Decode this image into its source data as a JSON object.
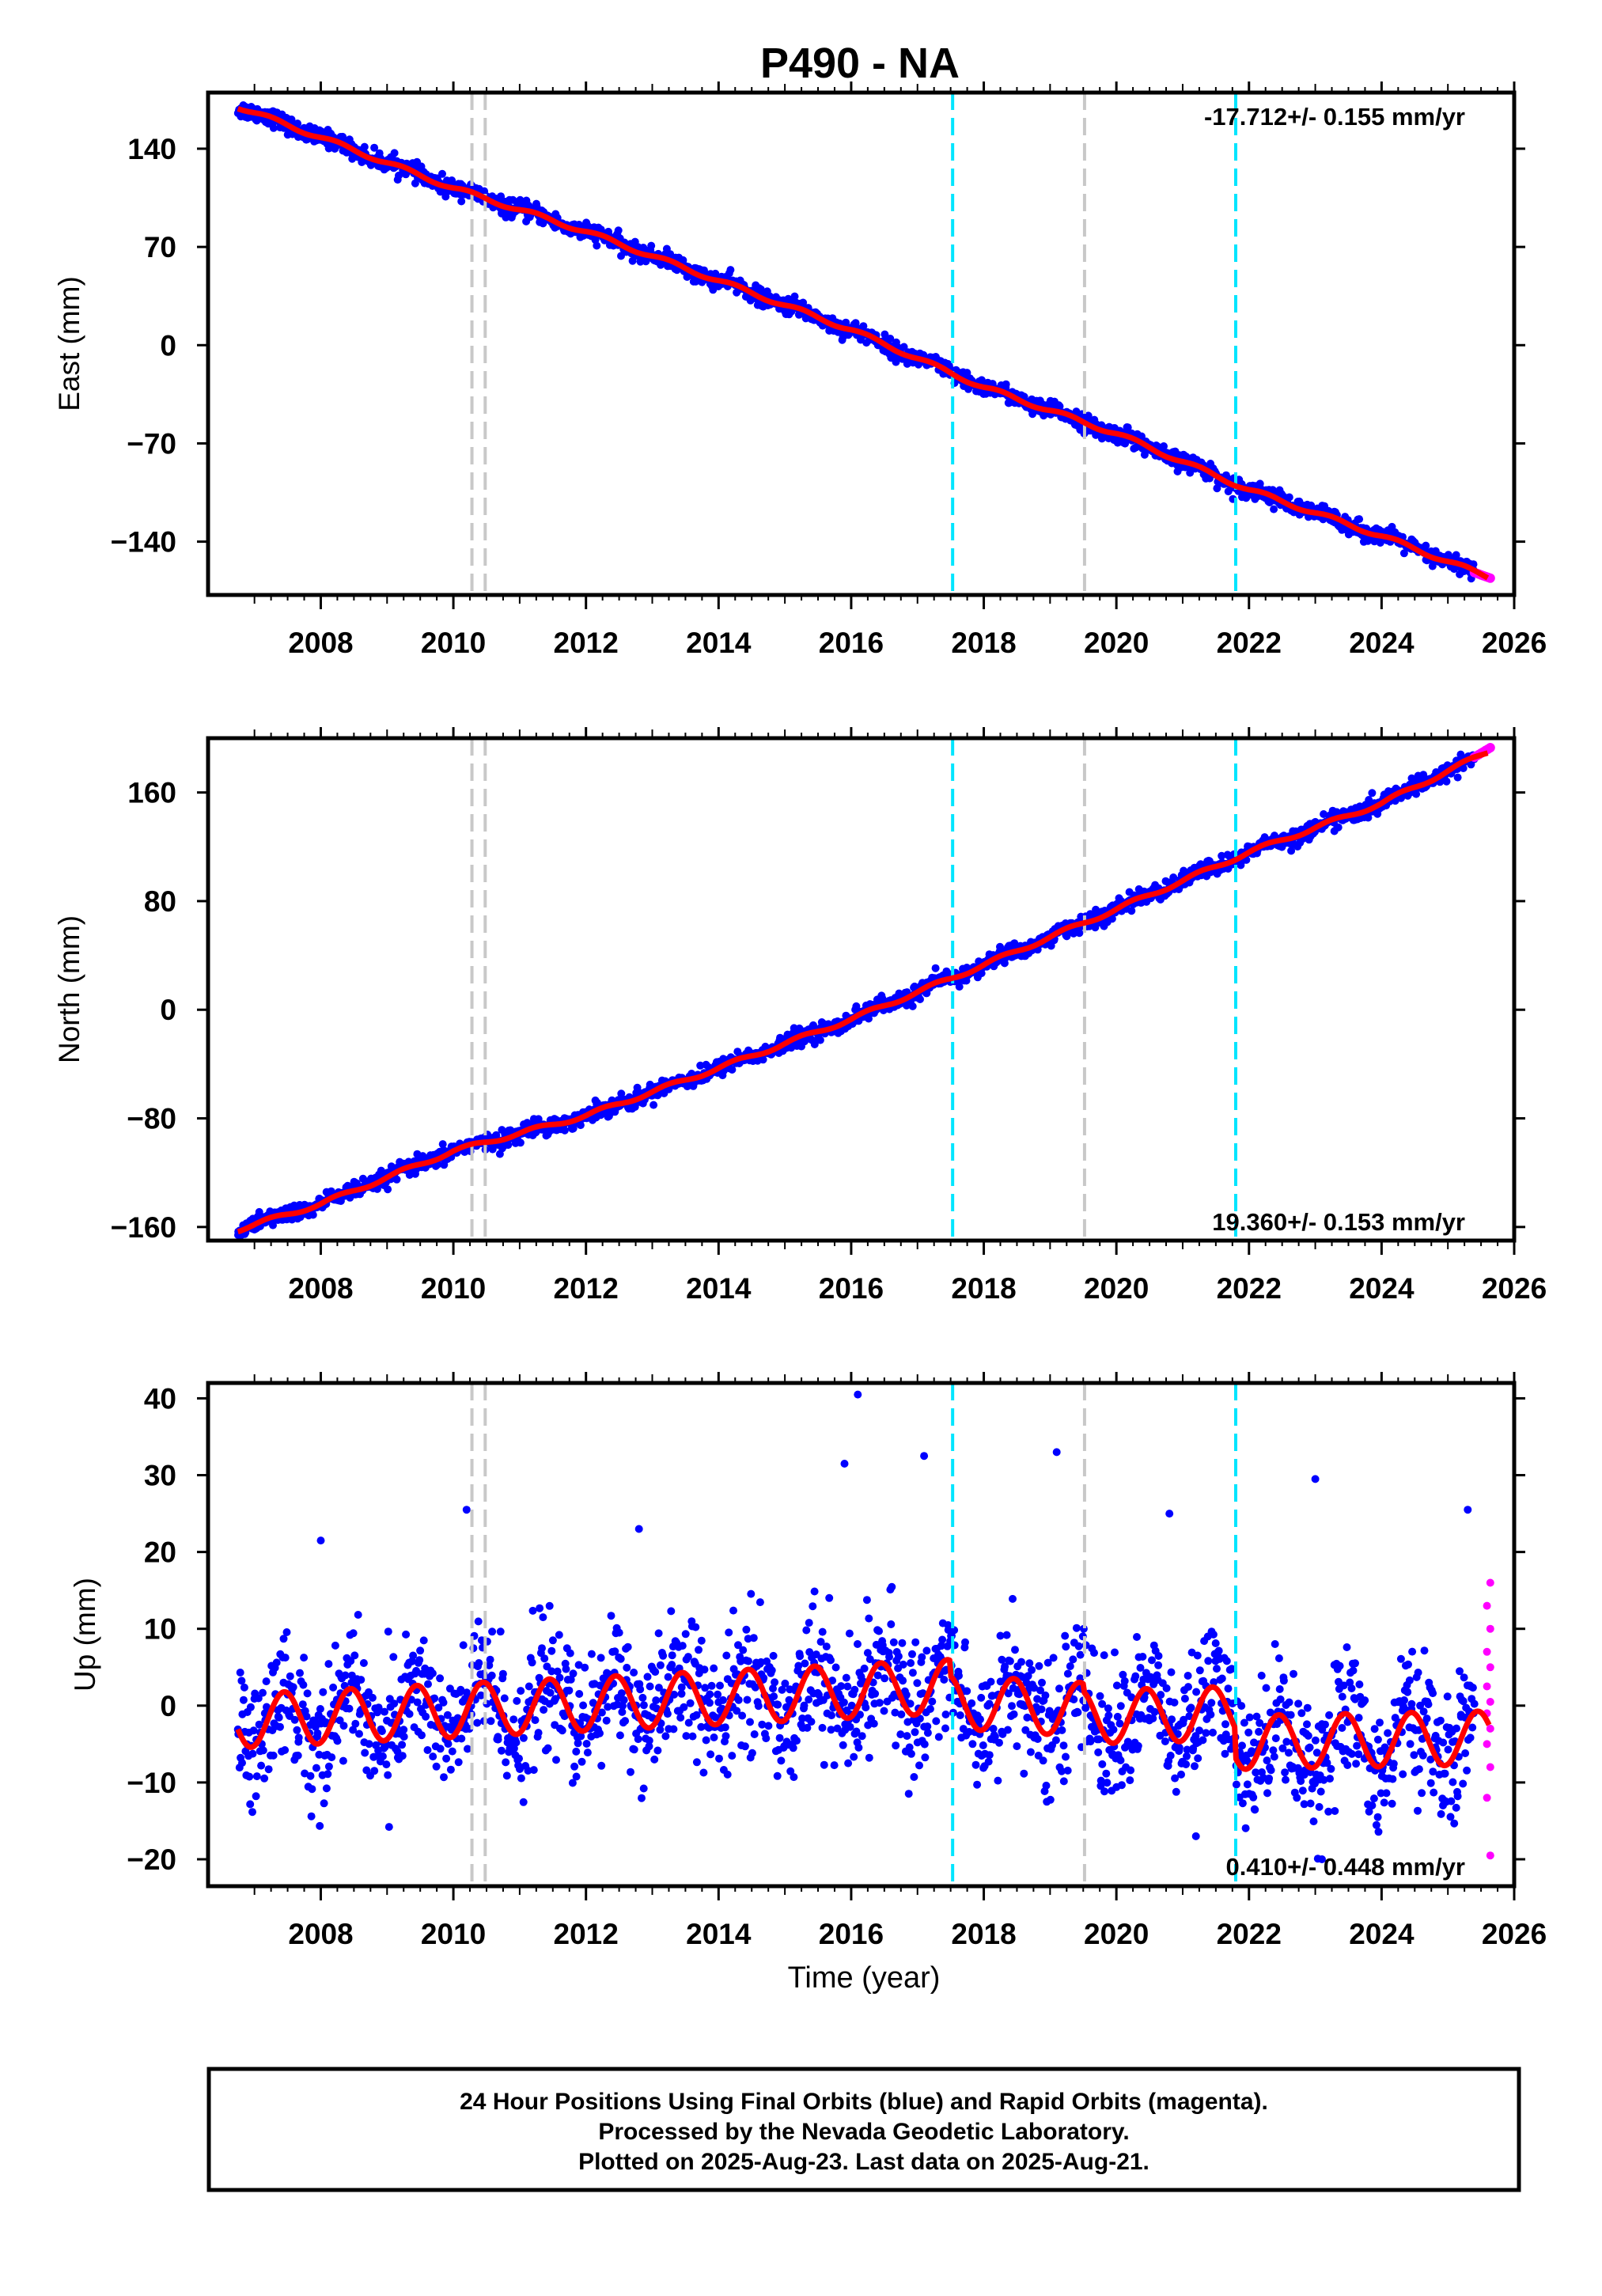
{
  "title": "P490 - NA",
  "xlabel": "Time (year)",
  "footer": {
    "lines": [
      "24 Hour Positions Using Final Orbits (blue) and Rapid Orbits (magenta).",
      "Processed by the Nevada Geodetic Laboratory.",
      "Plotted on 2025-Aug-23. Last data on 2025-Aug-21."
    ]
  },
  "colors": {
    "final_orbits": "#0000ff",
    "rapid_orbits": "#ff00ff",
    "model": "#ff0000",
    "equipment_change": "#c8c8c8",
    "earthquake": "#00e5ff",
    "frame": "#000000"
  },
  "chart_data": [
    {
      "type": "scatter",
      "component": "east",
      "ylabel": "East (mm)",
      "rate_text": "-17.712+/- 0.155 mm/yr",
      "xlim": [
        2006.3,
        2026.0
      ],
      "ylim": [
        -178,
        180
      ],
      "yticks": [
        140,
        70,
        0,
        -70,
        -140
      ],
      "ytick_labels": [
        "140",
        "70",
        "0",
        "−70",
        "−140"
      ],
      "xticks": [
        2008,
        2010,
        2012,
        2014,
        2016,
        2018,
        2020,
        2022,
        2024,
        2026
      ],
      "grid": false,
      "model": {
        "x": [
          2006.75,
          2008.0,
          2010.0,
          2012.0,
          2014.0,
          2016.0,
          2018.0,
          2020.0,
          2022.0,
          2024.0,
          2025.6
        ],
        "y": [
          170,
          148,
          112,
          81,
          46,
          11,
          -30,
          -63,
          -103,
          -136,
          -165
        ]
      },
      "rapid": {
        "x_start": 2025.4,
        "x_end": 2025.64,
        "y_start": -162,
        "y_end": -166
      },
      "scatter_sd": 3
    },
    {
      "type": "scatter",
      "component": "north",
      "ylabel": "North (mm)",
      "rate_text": "19.360+/- 0.153 mm/yr",
      "xlim": [
        2006.3,
        2026.0
      ],
      "ylim": [
        -170,
        200
      ],
      "yticks": [
        160,
        80,
        0,
        -80,
        -160
      ],
      "ytick_labels": [
        "160",
        "80",
        "0",
        "−80",
        "−160"
      ],
      "xticks": [
        2008,
        2010,
        2012,
        2014,
        2016,
        2018,
        2020,
        2022,
        2024,
        2026
      ],
      "grid": false,
      "model": {
        "x": [
          2006.75,
          2008.0,
          2010.0,
          2012.0,
          2014.0,
          2016.0,
          2018.0,
          2020.0,
          2022.0,
          2024.0,
          2025.6
        ],
        "y": [
          -162,
          -143,
          -104,
          -78,
          -43,
          -7,
          33,
          74,
          116,
          152,
          190
        ]
      },
      "rapid": {
        "x_start": 2025.4,
        "x_end": 2025.64,
        "y_start": 186,
        "y_end": 193
      },
      "scatter_sd": 3
    },
    {
      "type": "scatter",
      "component": "up",
      "ylabel": "Up (mm)",
      "rate_text": "0.410+/- 0.448 mm/yr",
      "xlim": [
        2006.3,
        2026.0
      ],
      "ylim": [
        -23.5,
        42
      ],
      "yticks": [
        40,
        30,
        20,
        10,
        0,
        -10,
        -20
      ],
      "ytick_labels": [
        "40",
        "30",
        "20",
        "10",
        "0",
        "−10",
        "−20"
      ],
      "xticks": [
        2008,
        2010,
        2012,
        2014,
        2016,
        2018,
        2020,
        2022,
        2024,
        2026
      ],
      "grid": false,
      "model": {
        "x_start": 2006.75,
        "x_end": 2025.62,
        "annual_amplitude": 3.5,
        "annual_phase_year": 2006.2,
        "segments": [
          {
            "x0": 2006.75,
            "x1": 2017.5,
            "y0": -2.0,
            "y1": 2.5
          },
          {
            "x0": 2017.5,
            "x1": 2019.5,
            "y0": 0.5,
            "y1": -0.5
          },
          {
            "x0": 2019.5,
            "x1": 2021.8,
            "y0": -1.5,
            "y1": -1.0
          },
          {
            "x0": 2021.8,
            "x1": 2025.62,
            "y0": -4.8,
            "y1": -4.2
          }
        ]
      },
      "rapid": {
        "x_start": 2025.4,
        "x_end": 2025.64,
        "y_values": [
          16,
          13,
          10,
          7,
          5,
          2.5,
          0.5,
          -1,
          -3,
          -5,
          -8,
          -12,
          -19.5
        ]
      },
      "scatter_sd": 4.2,
      "outliers": [
        {
          "x": 2016.1,
          "y": 40.5
        },
        {
          "x": 2017.1,
          "y": 32.5
        },
        {
          "x": 2019.1,
          "y": 33
        },
        {
          "x": 2015.9,
          "y": 31.5
        },
        {
          "x": 2010.2,
          "y": 25.5
        },
        {
          "x": 2020.8,
          "y": 25
        },
        {
          "x": 2023.0,
          "y": 29.5
        },
        {
          "x": 2008.0,
          "y": 21.5
        },
        {
          "x": 2012.8,
          "y": 23
        },
        {
          "x": 2025.3,
          "y": 25.5
        },
        {
          "x": 2021.2,
          "y": -17
        },
        {
          "x": 2023.1,
          "y": -20
        }
      ]
    }
  ],
  "vertical_markers": [
    {
      "x": 2010.28,
      "kind": "equipment_change"
    },
    {
      "x": 2010.48,
      "kind": "equipment_change"
    },
    {
      "x": 2019.52,
      "kind": "equipment_change"
    },
    {
      "x": 2017.53,
      "kind": "earthquake"
    },
    {
      "x": 2021.8,
      "kind": "earthquake"
    }
  ]
}
